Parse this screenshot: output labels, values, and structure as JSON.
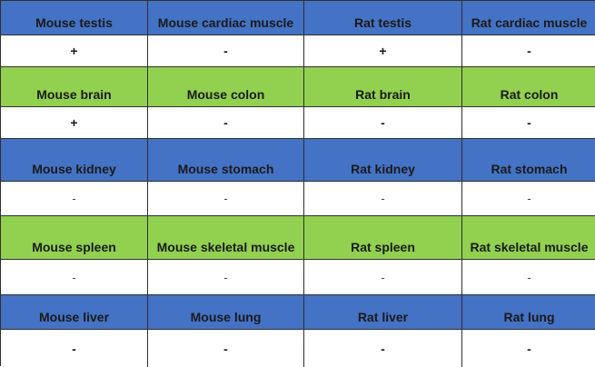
{
  "rows": [
    {
      "type": "header",
      "color": "#4472c4",
      "cells": [
        "Mouse testis",
        "Mouse cardiac muscle",
        "Rat testis",
        "Rat cardiac muscle"
      ]
    },
    {
      "type": "value",
      "cells": [
        "+",
        "-",
        "+",
        "-"
      ]
    },
    {
      "type": "header",
      "color": "#92d050",
      "cells": [
        "Mouse brain",
        "Mouse colon",
        "Rat brain",
        "Rat colon"
      ]
    },
    {
      "type": "value",
      "cells": [
        "+",
        "-",
        "-",
        "-"
      ]
    },
    {
      "type": "header",
      "color": "#4472c4",
      "cells": [
        "Mouse kidney",
        "Mouse stomach",
        "Rat kidney",
        "Rat stomach"
      ]
    },
    {
      "type": "value",
      "cells": [
        "-",
        "-",
        "-",
        "-"
      ]
    },
    {
      "type": "header",
      "color": "#92d050",
      "cells": [
        "Mouse spleen",
        "Mouse skeletal muscle",
        "Rat spleen",
        "Rat skeletal muscle"
      ]
    },
    {
      "type": "value",
      "cells": [
        "-",
        "-",
        "-",
        "-"
      ]
    },
    {
      "type": "header",
      "color": "#4472c4",
      "cells": [
        "Mouse liver",
        "Mouse lung",
        "Rat liver",
        "Rat lung"
      ]
    },
    {
      "type": "value",
      "cells": [
        "-",
        "-",
        "-",
        "-"
      ]
    }
  ]
}
